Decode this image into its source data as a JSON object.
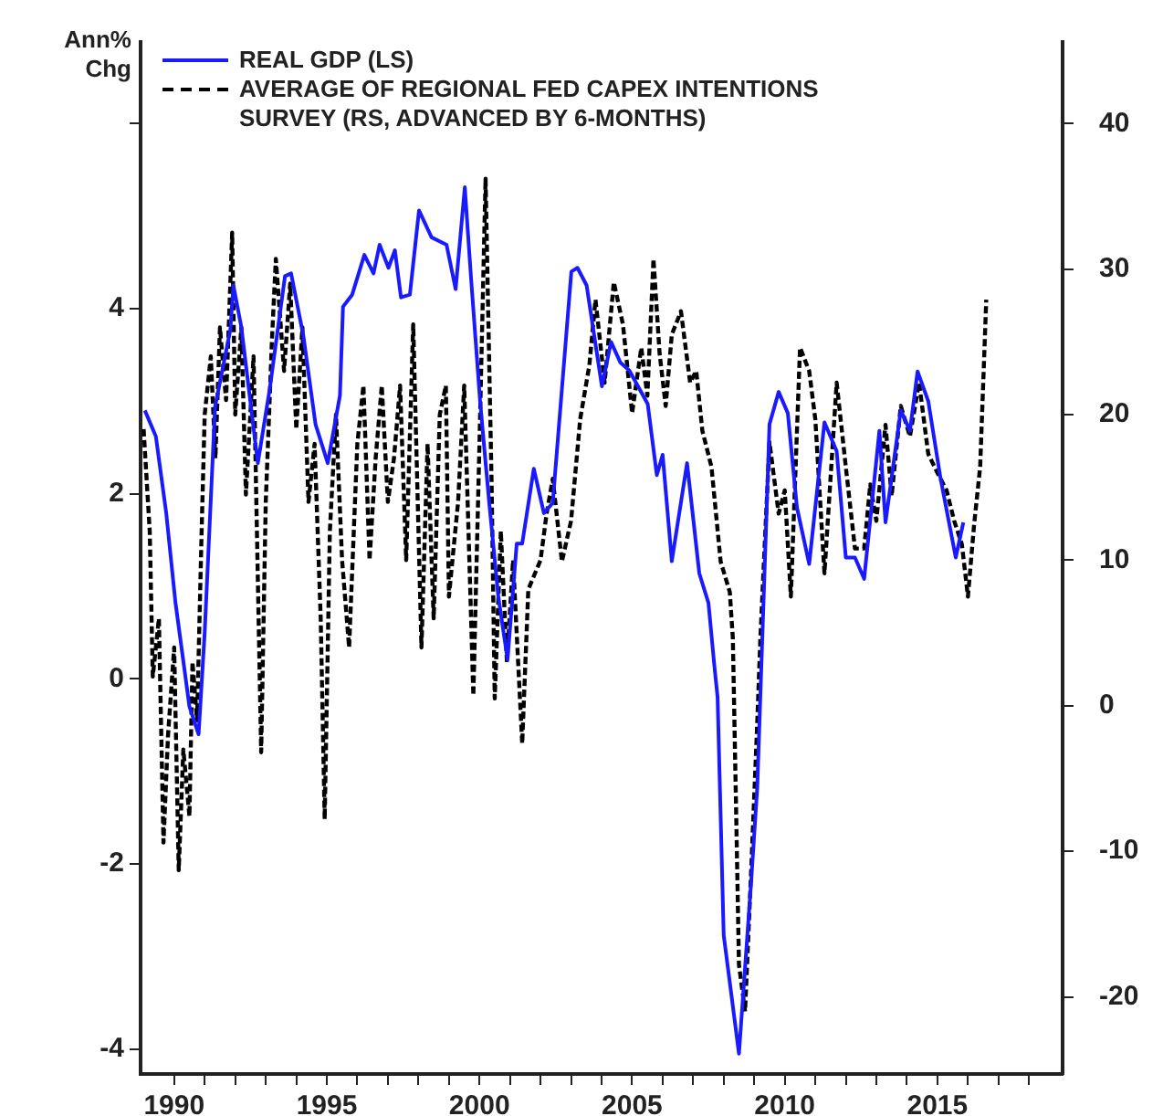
{
  "chart_data": {
    "type": "line",
    "ylabel": "Ann% Chg",
    "xlim": [
      1988.9,
      2019.1
    ],
    "xticks": [
      1990,
      {
        "value": 1991,
        "label": null
      },
      {
        "value": 1992,
        "label": null
      },
      {
        "value": 1993,
        "label": null
      },
      {
        "value": 1994,
        "label": null
      },
      1995,
      {
        "value": 1996,
        "label": null
      },
      {
        "value": 1997,
        "label": null
      },
      {
        "value": 1998,
        "label": null
      },
      {
        "value": 1999,
        "label": null
      },
      2000,
      {
        "value": 2001,
        "label": null
      },
      {
        "value": 2002,
        "label": null
      },
      {
        "value": 2003,
        "label": null
      },
      {
        "value": 2004,
        "label": null
      },
      2005,
      {
        "value": 2006,
        "label": null
      },
      {
        "value": 2007,
        "label": null
      },
      {
        "value": 2008,
        "label": null
      },
      {
        "value": 2009,
        "label": null
      },
      2010,
      {
        "value": 2011,
        "label": null
      },
      {
        "value": 2012,
        "label": null
      },
      {
        "value": 2013,
        "label": null
      },
      {
        "value": 2014,
        "label": null
      },
      2015,
      {
        "value": 2016,
        "label": null
      },
      {
        "value": 2017,
        "label": null
      },
      {
        "value": 2018,
        "label": null
      }
    ],
    "ylim": [
      -4.27,
      6.88
    ],
    "yticks": [
      -4,
      -2,
      0,
      2,
      4,
      {
        "value": 6,
        "label": null
      }
    ],
    "y2lim": [
      -25.3,
      45.6
    ],
    "y2ticks": [
      -20,
      -10,
      0,
      10,
      20,
      30,
      40
    ],
    "grid": false,
    "legend": "top left",
    "marker": "none",
    "series": [
      {
        "name": "REAL GDP (LS)",
        "color": "#1a1aff",
        "line_style": "solid",
        "x": [
          1989.04,
          1989.4,
          1989.74,
          1990.04,
          1990.5,
          1990.8,
          1991.0,
          1991.34,
          1991.84,
          1991.94,
          1992.2,
          1992.74,
          1993.13,
          1993.63,
          1993.83,
          1994.23,
          1994.63,
          1995.03,
          1995.43,
          1995.53,
          1995.83,
          1996.23,
          1996.53,
          1996.73,
          1997.02,
          1997.23,
          1997.43,
          1997.72,
          1998.02,
          1998.43,
          1998.92,
          1999.22,
          1999.52,
          1999.72,
          2000.02,
          2000.32,
          2000.62,
          2000.92,
          2001.22,
          2001.4,
          2001.78,
          2002.11,
          2002.4,
          2003.01,
          2003.21,
          2003.51,
          2004.01,
          2004.31,
          2004.61,
          2004.91,
          2005.51,
          2005.81,
          2006.0,
          2006.3,
          2006.8,
          2007.2,
          2007.5,
          2007.7,
          2007.8,
          2008.0,
          2008.5,
          2008.9,
          2009.1,
          2009.5,
          2009.8,
          2010.1,
          2010.4,
          2010.8,
          2011.3,
          2011.7,
          2012.0,
          2012.3,
          2012.6,
          2013.1,
          2013.3,
          2013.8,
          2014.1,
          2014.35,
          2014.7,
          2015.1,
          2015.6,
          2015.85
        ],
        "values": [
          2.9,
          2.62,
          1.79,
          0.83,
          -0.3,
          -0.6,
          0.5,
          2.94,
          3.77,
          4.25,
          3.8,
          2.33,
          3.13,
          4.35,
          4.38,
          3.71,
          2.75,
          2.33,
          3.06,
          4.02,
          4.15,
          4.58,
          4.38,
          4.69,
          4.44,
          4.63,
          4.12,
          4.15,
          5.06,
          4.77,
          4.69,
          4.21,
          5.31,
          4.35,
          3.0,
          1.9,
          0.88,
          0.21,
          1.46,
          1.46,
          2.27,
          1.79,
          1.9,
          4.4,
          4.44,
          4.25,
          3.16,
          3.64,
          3.42,
          3.33,
          2.97,
          2.2,
          2.42,
          1.27,
          2.33,
          1.14,
          0.82,
          0.12,
          -0.2,
          -2.77,
          -4.05,
          -2.19,
          -1.17,
          2.75,
          3.1,
          2.87,
          1.85,
          1.24,
          2.77,
          2.46,
          1.31,
          1.31,
          1.08,
          2.68,
          1.69,
          2.9,
          2.68,
          3.32,
          3.0,
          2.17,
          1.31,
          1.69
        ]
      },
      {
        "name": "AVERAGE OF REGIONAL FED CAPEX INTENTIONS SURVEY (RS, ADVANCED BY 6-MONTHS)",
        "color": "#000000",
        "line_style": "dashed",
        "axis": "y2",
        "x": [
          1989.0,
          1989.2,
          1989.3,
          1989.5,
          1989.65,
          1989.8,
          1990.0,
          1990.15,
          1990.3,
          1990.5,
          1990.6,
          1990.75,
          1990.9,
          1991.0,
          1991.2,
          1991.35,
          1991.5,
          1991.7,
          1991.9,
          1992.0,
          1992.2,
          1992.35,
          1992.6,
          1992.85,
          1993.0,
          1993.2,
          1993.33,
          1993.6,
          1993.8,
          1994.0,
          1994.2,
          1994.4,
          1994.6,
          1994.8,
          1994.93,
          1995.1,
          1995.3,
          1995.5,
          1995.73,
          1996.0,
          1996.2,
          1996.4,
          1996.6,
          1996.8,
          1997.0,
          1997.2,
          1997.4,
          1997.6,
          1997.83,
          1998.1,
          1998.3,
          1998.5,
          1998.7,
          1998.9,
          1999.0,
          1999.3,
          1999.5,
          1999.8,
          2000.0,
          2000.2,
          2000.4,
          2000.5,
          2000.7,
          2000.9,
          2001.1,
          2001.4,
          2001.6,
          2002.0,
          2002.2,
          2002.4,
          2002.7,
          2003.0,
          2003.3,
          2003.6,
          2003.8,
          2004.1,
          2004.4,
          2004.7,
          2005.0,
          2005.3,
          2005.5,
          2005.7,
          2005.9,
          2006.1,
          2006.3,
          2006.6,
          2006.9,
          2007.1,
          2007.3,
          2007.6,
          2007.9,
          2008.2,
          2008.3,
          2008.4,
          2008.5,
          2008.7,
          2008.9,
          2009.1,
          2009.2,
          2009.5,
          2009.8,
          2010.0,
          2010.2,
          2010.5,
          2010.8,
          2011.0,
          2011.3,
          2011.7,
          2012.0,
          2012.3,
          2012.6,
          2012.8,
          2013.0,
          2013.3,
          2013.5,
          2013.8,
          2014.1,
          2014.4,
          2014.7,
          2015.0,
          2015.3,
          2015.55,
          2015.8,
          2016.0,
          2016.2,
          2016.4,
          2016.6
        ],
        "values": [
          19,
          12,
          2,
          6,
          -9.4,
          -2,
          4,
          -11.3,
          -3,
          -7.6,
          3,
          -1,
          12,
          20,
          24,
          17,
          26,
          21,
          32.5,
          20,
          26,
          14.5,
          24,
          -3.2,
          14,
          25,
          30.7,
          23,
          29,
          19,
          26,
          14,
          18,
          6,
          -7.8,
          12,
          20,
          10,
          4,
          18,
          22,
          10,
          17,
          22,
          14,
          17,
          22,
          10,
          26.2,
          4,
          18,
          6,
          20,
          22,
          7.5,
          14,
          22,
          0.7,
          18,
          36.2,
          15,
          0.5,
          12,
          3,
          10,
          -2.6,
          8,
          10,
          13.2,
          15.6,
          9.9,
          12.7,
          19.7,
          23.4,
          27.9,
          22.2,
          29.1,
          26.2,
          20.1,
          24.6,
          21.3,
          30.7,
          24.2,
          20.6,
          25.5,
          27.1,
          22.2,
          23.0,
          18.9,
          16.4,
          9.9,
          7.8,
          4.6,
          -6.4,
          -17.8,
          -21,
          -11.3,
          -1.1,
          4.6,
          18.1,
          13.2,
          14.8,
          7.5,
          24.6,
          23,
          19.7,
          9.1,
          22.2,
          16.4,
          10.8,
          10.8,
          15.2,
          12.7,
          19.3,
          14.4,
          20.6,
          18.5,
          22.2,
          17.3,
          16.0,
          14.8,
          12.7,
          11.1,
          7.5,
          12.4,
          16.4,
          27.9
        ]
      }
    ]
  }
}
